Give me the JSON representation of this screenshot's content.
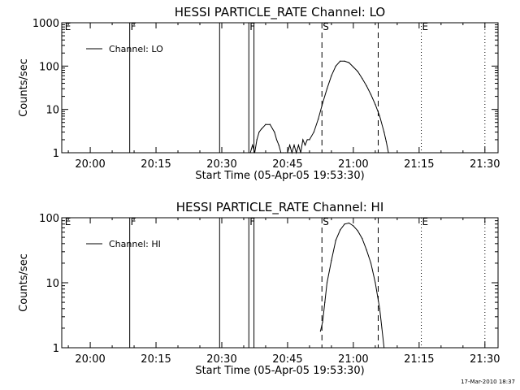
{
  "footer_stamp": "17-Mar-2010 18:37",
  "chart_data": [
    {
      "type": "line",
      "title": "HESSI PARTICLE_RATE Channel: LO",
      "xlabel": "Start Time (05-Apr-05 19:53:30)",
      "ylabel": "Counts/sec",
      "yscale": "log",
      "xlim": [
        "19:53:30",
        "21:33:00"
      ],
      "ylim": [
        1,
        1000
      ],
      "xticks": [
        "20:00",
        "20:15",
        "20:30",
        "20:45",
        "21:00",
        "21:15",
        "21:30"
      ],
      "yticks": [
        "1",
        "10",
        "100",
        "1000"
      ],
      "legend": {
        "position": "top-left",
        "entries": [
          "Channel: LO"
        ]
      },
      "grid": false,
      "markers": [
        {
          "label": "E",
          "time": "19:54:00",
          "style": "solid",
          "label_only": true
        },
        {
          "label": "F",
          "time": "20:09:00",
          "style": "solid"
        },
        {
          "label": "",
          "time": "20:29:30",
          "style": "solid"
        },
        {
          "label": "F",
          "time": "20:36:10",
          "style": "solid"
        },
        {
          "label": "",
          "time": "20:37:20",
          "style": "solid"
        },
        {
          "label": "S",
          "time": "20:52:50",
          "style": "dashed"
        },
        {
          "label": "",
          "time": "21:05:40",
          "style": "dashed"
        },
        {
          "label": "E",
          "time": "21:15:30",
          "style": "dotted"
        },
        {
          "label": "",
          "time": "21:30:00",
          "style": "dotted"
        }
      ],
      "series": [
        {
          "name": "Channel: LO",
          "x": [
            "20:36:30",
            "20:37:00",
            "20:37:30",
            "20:38:00",
            "20:38:30",
            "20:39:00",
            "20:40:00",
            "20:41:00",
            "20:42:00",
            "20:42:30",
            "20:43:00",
            "20:43:30",
            "20:44:00",
            "20:44:30",
            "20:45:00",
            "20:45:30",
            "20:46:00",
            "20:46:30",
            "20:47:00",
            "20:47:30",
            "20:48:00",
            "20:48:30",
            "20:49:00",
            "20:49:30",
            "20:50:00",
            "20:51:00",
            "20:52:00",
            "20:53:00",
            "20:54:00",
            "20:55:00",
            "20:56:00",
            "20:57:00",
            "20:58:00",
            "20:59:00",
            "21:00:00",
            "21:01:00",
            "21:02:00",
            "21:03:00",
            "21:04:00",
            "21:05:00",
            "21:06:00",
            "21:07:00",
            "21:07:30",
            "21:08:00"
          ],
          "y": [
            1,
            1.5,
            1,
            2,
            3,
            3.5,
            4.5,
            4.5,
            3,
            2,
            1.5,
            1,
            1,
            1,
            1,
            1.5,
            1,
            1.5,
            1,
            1.5,
            1,
            2,
            1.5,
            2,
            2,
            3,
            6,
            14,
            30,
            60,
            100,
            130,
            130,
            120,
            95,
            75,
            52,
            35,
            22,
            13,
            7,
            3,
            1.8,
            1
          ]
        }
      ]
    },
    {
      "type": "line",
      "title": "HESSI PARTICLE_RATE Channel: HI",
      "xlabel": "Start Time (05-Apr-05 19:53:30)",
      "ylabel": "Counts/sec",
      "yscale": "log",
      "xlim": [
        "19:53:30",
        "21:33:00"
      ],
      "ylim": [
        1,
        100
      ],
      "xticks": [
        "20:00",
        "20:15",
        "20:30",
        "20:45",
        "21:00",
        "21:15",
        "21:30"
      ],
      "yticks": [
        "1",
        "10",
        "100"
      ],
      "legend": {
        "position": "top-left",
        "entries": [
          "Channel: HI"
        ]
      },
      "grid": false,
      "markers": [
        {
          "label": "E",
          "time": "19:54:00",
          "style": "solid",
          "label_only": true
        },
        {
          "label": "F",
          "time": "20:09:00",
          "style": "solid"
        },
        {
          "label": "",
          "time": "20:29:30",
          "style": "solid"
        },
        {
          "label": "F",
          "time": "20:36:10",
          "style": "solid"
        },
        {
          "label": "",
          "time": "20:37:20",
          "style": "solid"
        },
        {
          "label": "S",
          "time": "20:52:50",
          "style": "dashed"
        },
        {
          "label": "",
          "time": "21:05:40",
          "style": "dashed"
        },
        {
          "label": "E",
          "time": "21:15:30",
          "style": "dotted"
        },
        {
          "label": "",
          "time": "21:30:00",
          "style": "dotted"
        }
      ],
      "series": [
        {
          "name": "Channel: HI",
          "x": [
            "20:52:30",
            "20:53:00",
            "20:53:30",
            "20:54:00",
            "20:55:00",
            "20:56:00",
            "20:57:00",
            "20:58:00",
            "20:59:00",
            "21:00:00",
            "21:01:00",
            "21:02:00",
            "21:03:00",
            "21:04:00",
            "21:05:00",
            "21:06:00",
            "21:06:30",
            "21:07:00"
          ],
          "y": [
            1.8,
            2.5,
            5,
            10,
            22,
            45,
            65,
            80,
            83,
            75,
            63,
            48,
            32,
            20,
            10,
            4,
            2,
            1
          ]
        }
      ]
    }
  ]
}
